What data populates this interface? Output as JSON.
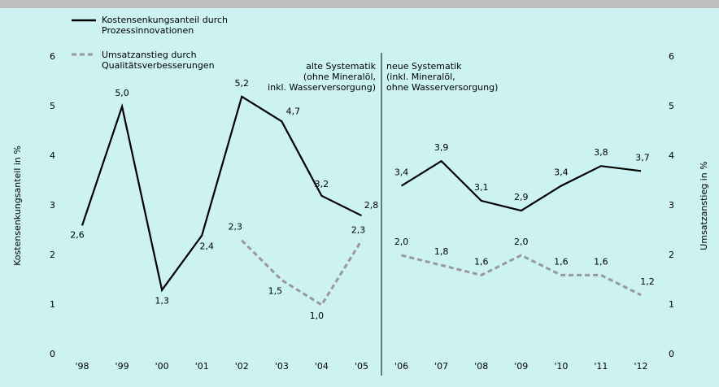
{
  "chart_data": {
    "type": "line",
    "categories": [
      "'98",
      "'99",
      "'00",
      "'01",
      "'02",
      "'03",
      "'04",
      "'05",
      "'06",
      "'07",
      "'08",
      "'09",
      "'10",
      "'11",
      "'12"
    ],
    "series": [
      {
        "name": "Kostensenkungsanteil durch\nProzessinnovationen",
        "color": "#000000",
        "dash": false,
        "values": [
          2.6,
          5.0,
          1.3,
          2.4,
          5.2,
          4.7,
          3.2,
          2.8,
          3.4,
          3.9,
          3.1,
          2.9,
          3.4,
          3.8,
          3.7
        ],
        "value_labels": [
          "2,6",
          "5,0",
          "1,3",
          "2,4",
          "5,2",
          "4,7",
          "3,2",
          "2,8",
          "3,4",
          "3,9",
          "3,1",
          "2,9",
          "3,4",
          "3,8",
          "3,7"
        ]
      },
      {
        "name": "Umsatzanstieg durch\nQualitätsverbesserungen",
        "color": "#999999",
        "dash": true,
        "axis": "y2",
        "values": [
          null,
          null,
          null,
          null,
          2.3,
          1.5,
          1.0,
          2.3,
          2.0,
          1.8,
          1.6,
          2.0,
          1.6,
          1.6,
          1.2
        ],
        "value_labels": [
          null,
          null,
          null,
          null,
          "2,3",
          "1,5",
          "1,0",
          "2,3",
          "2,0",
          "1,8",
          "1,6",
          "2,0",
          "1,6",
          "1,6",
          "1,2"
        ]
      }
    ],
    "ylabel": "Kostensenkungsanteil in %",
    "y2label": "Umsatzanstieg in %",
    "ylim": [
      0,
      6
    ],
    "yticks": [
      0,
      1,
      2,
      3,
      4,
      5,
      6
    ],
    "y2lim": [
      0,
      6
    ],
    "y2ticks": [
      0,
      1,
      2,
      3,
      4,
      5,
      6
    ],
    "annotations": [
      "alte Systematik\n(ohne Mineralöl,\ninkl. Wasserversorgung)",
      "neue Systematik\n(inkl. Mineralöl,\nohne Wasserversorgung)"
    ]
  }
}
